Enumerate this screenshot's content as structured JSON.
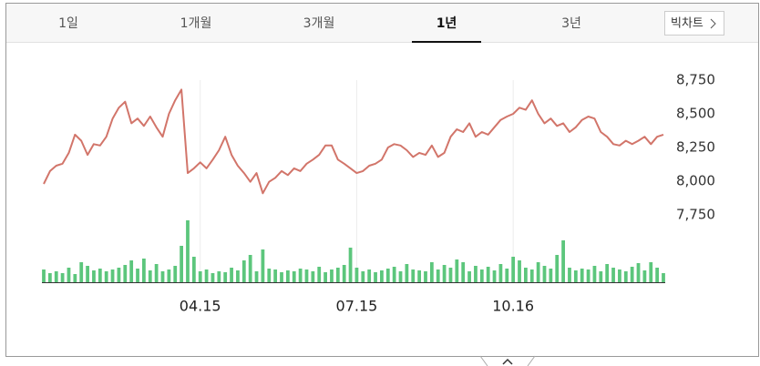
{
  "tabs": [
    "1일",
    "1개월",
    "3개월",
    "1년",
    "3년"
  ],
  "selected_tab": 3,
  "big_chart_button": "빅차트",
  "chart_data": {
    "type": "line",
    "color": "#d2756a",
    "categories": [
      null,
      null,
      null,
      null,
      null,
      null,
      null,
      null,
      null,
      null,
      null,
      null,
      null,
      null,
      null,
      null,
      null,
      null,
      null,
      null,
      null,
      null,
      null,
      null,
      null,
      "04.15",
      null,
      null,
      null,
      null,
      null,
      null,
      null,
      null,
      null,
      null,
      null,
      null,
      null,
      null,
      null,
      null,
      null,
      null,
      null,
      null,
      null,
      null,
      null,
      null,
      "07.15",
      null,
      null,
      null,
      null,
      null,
      null,
      null,
      null,
      null,
      null,
      null,
      null,
      null,
      null,
      null,
      null,
      null,
      null,
      null,
      null,
      null,
      null,
      null,
      null,
      "10.16",
      null,
      null,
      null,
      null,
      null,
      null,
      null,
      null,
      null,
      null,
      null,
      null,
      null,
      null,
      null,
      null,
      null,
      null,
      null,
      null,
      null,
      null,
      null,
      null
    ],
    "values": [
      7980,
      8075,
      8115,
      8130,
      8210,
      8345,
      8300,
      8195,
      8275,
      8265,
      8330,
      8465,
      8545,
      8590,
      8430,
      8465,
      8410,
      8480,
      8400,
      8330,
      8500,
      8600,
      8680,
      8060,
      8095,
      8140,
      8095,
      8160,
      8230,
      8330,
      8195,
      8115,
      8060,
      7995,
      8060,
      7910,
      7995,
      8025,
      8075,
      8045,
      8095,
      8075,
      8130,
      8160,
      8195,
      8265,
      8265,
      8160,
      8130,
      8095,
      8060,
      8075,
      8115,
      8130,
      8160,
      8250,
      8275,
      8265,
      8230,
      8180,
      8210,
      8195,
      8265,
      8180,
      8210,
      8330,
      8385,
      8365,
      8430,
      8330,
      8365,
      8345,
      8400,
      8455,
      8480,
      8500,
      8545,
      8530,
      8600,
      8500,
      8430,
      8465,
      8410,
      8430,
      8365,
      8400,
      8455,
      8480,
      8465,
      8365,
      8330,
      8275,
      8265,
      8300,
      8275,
      8300,
      8330,
      8275,
      8330,
      8345
    ],
    "ylim": [
      7750,
      8750
    ],
    "yticks": [
      {
        "value": 8750,
        "label": "8,750"
      },
      {
        "value": 8500,
        "label": "8,500"
      },
      {
        "value": 8250,
        "label": "8,250"
      },
      {
        "value": 8000,
        "label": "8,000"
      },
      {
        "value": 7750,
        "label": "7,750"
      }
    ],
    "volume_color": "#5cc67c",
    "volume_values": [
      14,
      10,
      12,
      10,
      16,
      9,
      22,
      18,
      13,
      15,
      12,
      14,
      16,
      19,
      24,
      15,
      26,
      13,
      20,
      12,
      14,
      18,
      40,
      68,
      28,
      12,
      14,
      10,
      12,
      11,
      16,
      13,
      24,
      30,
      12,
      36,
      15,
      14,
      11,
      13,
      12,
      15,
      14,
      12,
      17,
      11,
      14,
      16,
      19,
      38,
      16,
      12,
      14,
      11,
      13,
      15,
      17,
      12,
      20,
      14,
      13,
      12,
      22,
      14,
      19,
      16,
      25,
      22,
      12,
      18,
      14,
      17,
      13,
      20,
      15,
      28,
      24,
      16,
      14,
      22,
      18,
      15,
      30,
      46,
      16,
      13,
      15,
      14,
      18,
      12,
      20,
      16,
      14,
      12,
      17,
      21,
      13,
      22,
      16,
      10
    ]
  }
}
